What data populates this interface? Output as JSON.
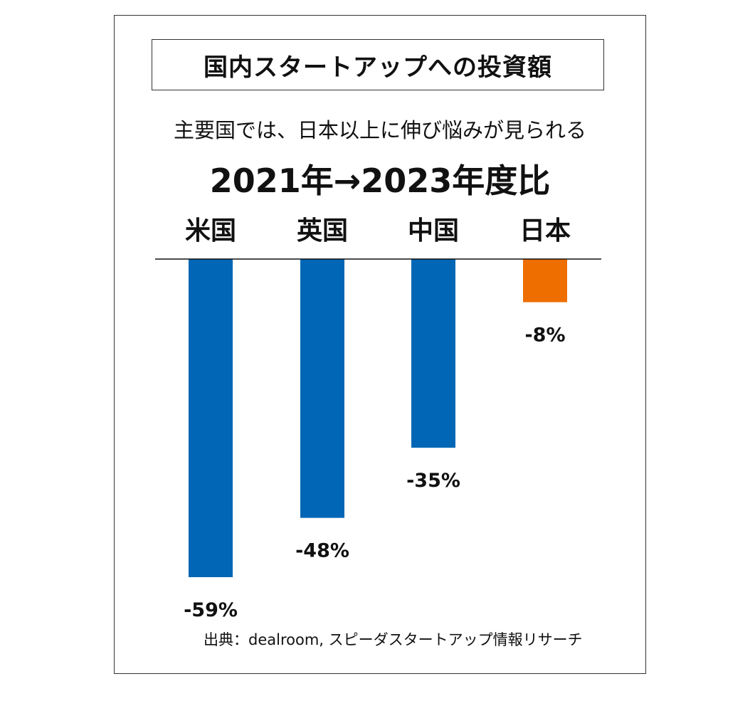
{
  "chart_data": {
    "type": "bar",
    "title": "国内スタートアップへの投資額",
    "subtitle": "主要国では、日本以上に伸び悩みが見られる",
    "period": "2021年→2023年度比",
    "categories": [
      "米国",
      "英国",
      "中国",
      "日本"
    ],
    "values": [
      -59,
      -48,
      -35,
      -8
    ],
    "data_labels": [
      "-59%",
      "-48%",
      "-35%",
      "-8%"
    ],
    "ylim": [
      -59,
      0
    ],
    "xlabel": "",
    "ylabel": "",
    "grid": false,
    "colors": [
      "#0066b5",
      "#0066b5",
      "#0066b5",
      "#ee6e00"
    ],
    "axis_color": "#111111",
    "source": "出典：dealroom, スピーダスタートアップ情報リサーチ"
  }
}
